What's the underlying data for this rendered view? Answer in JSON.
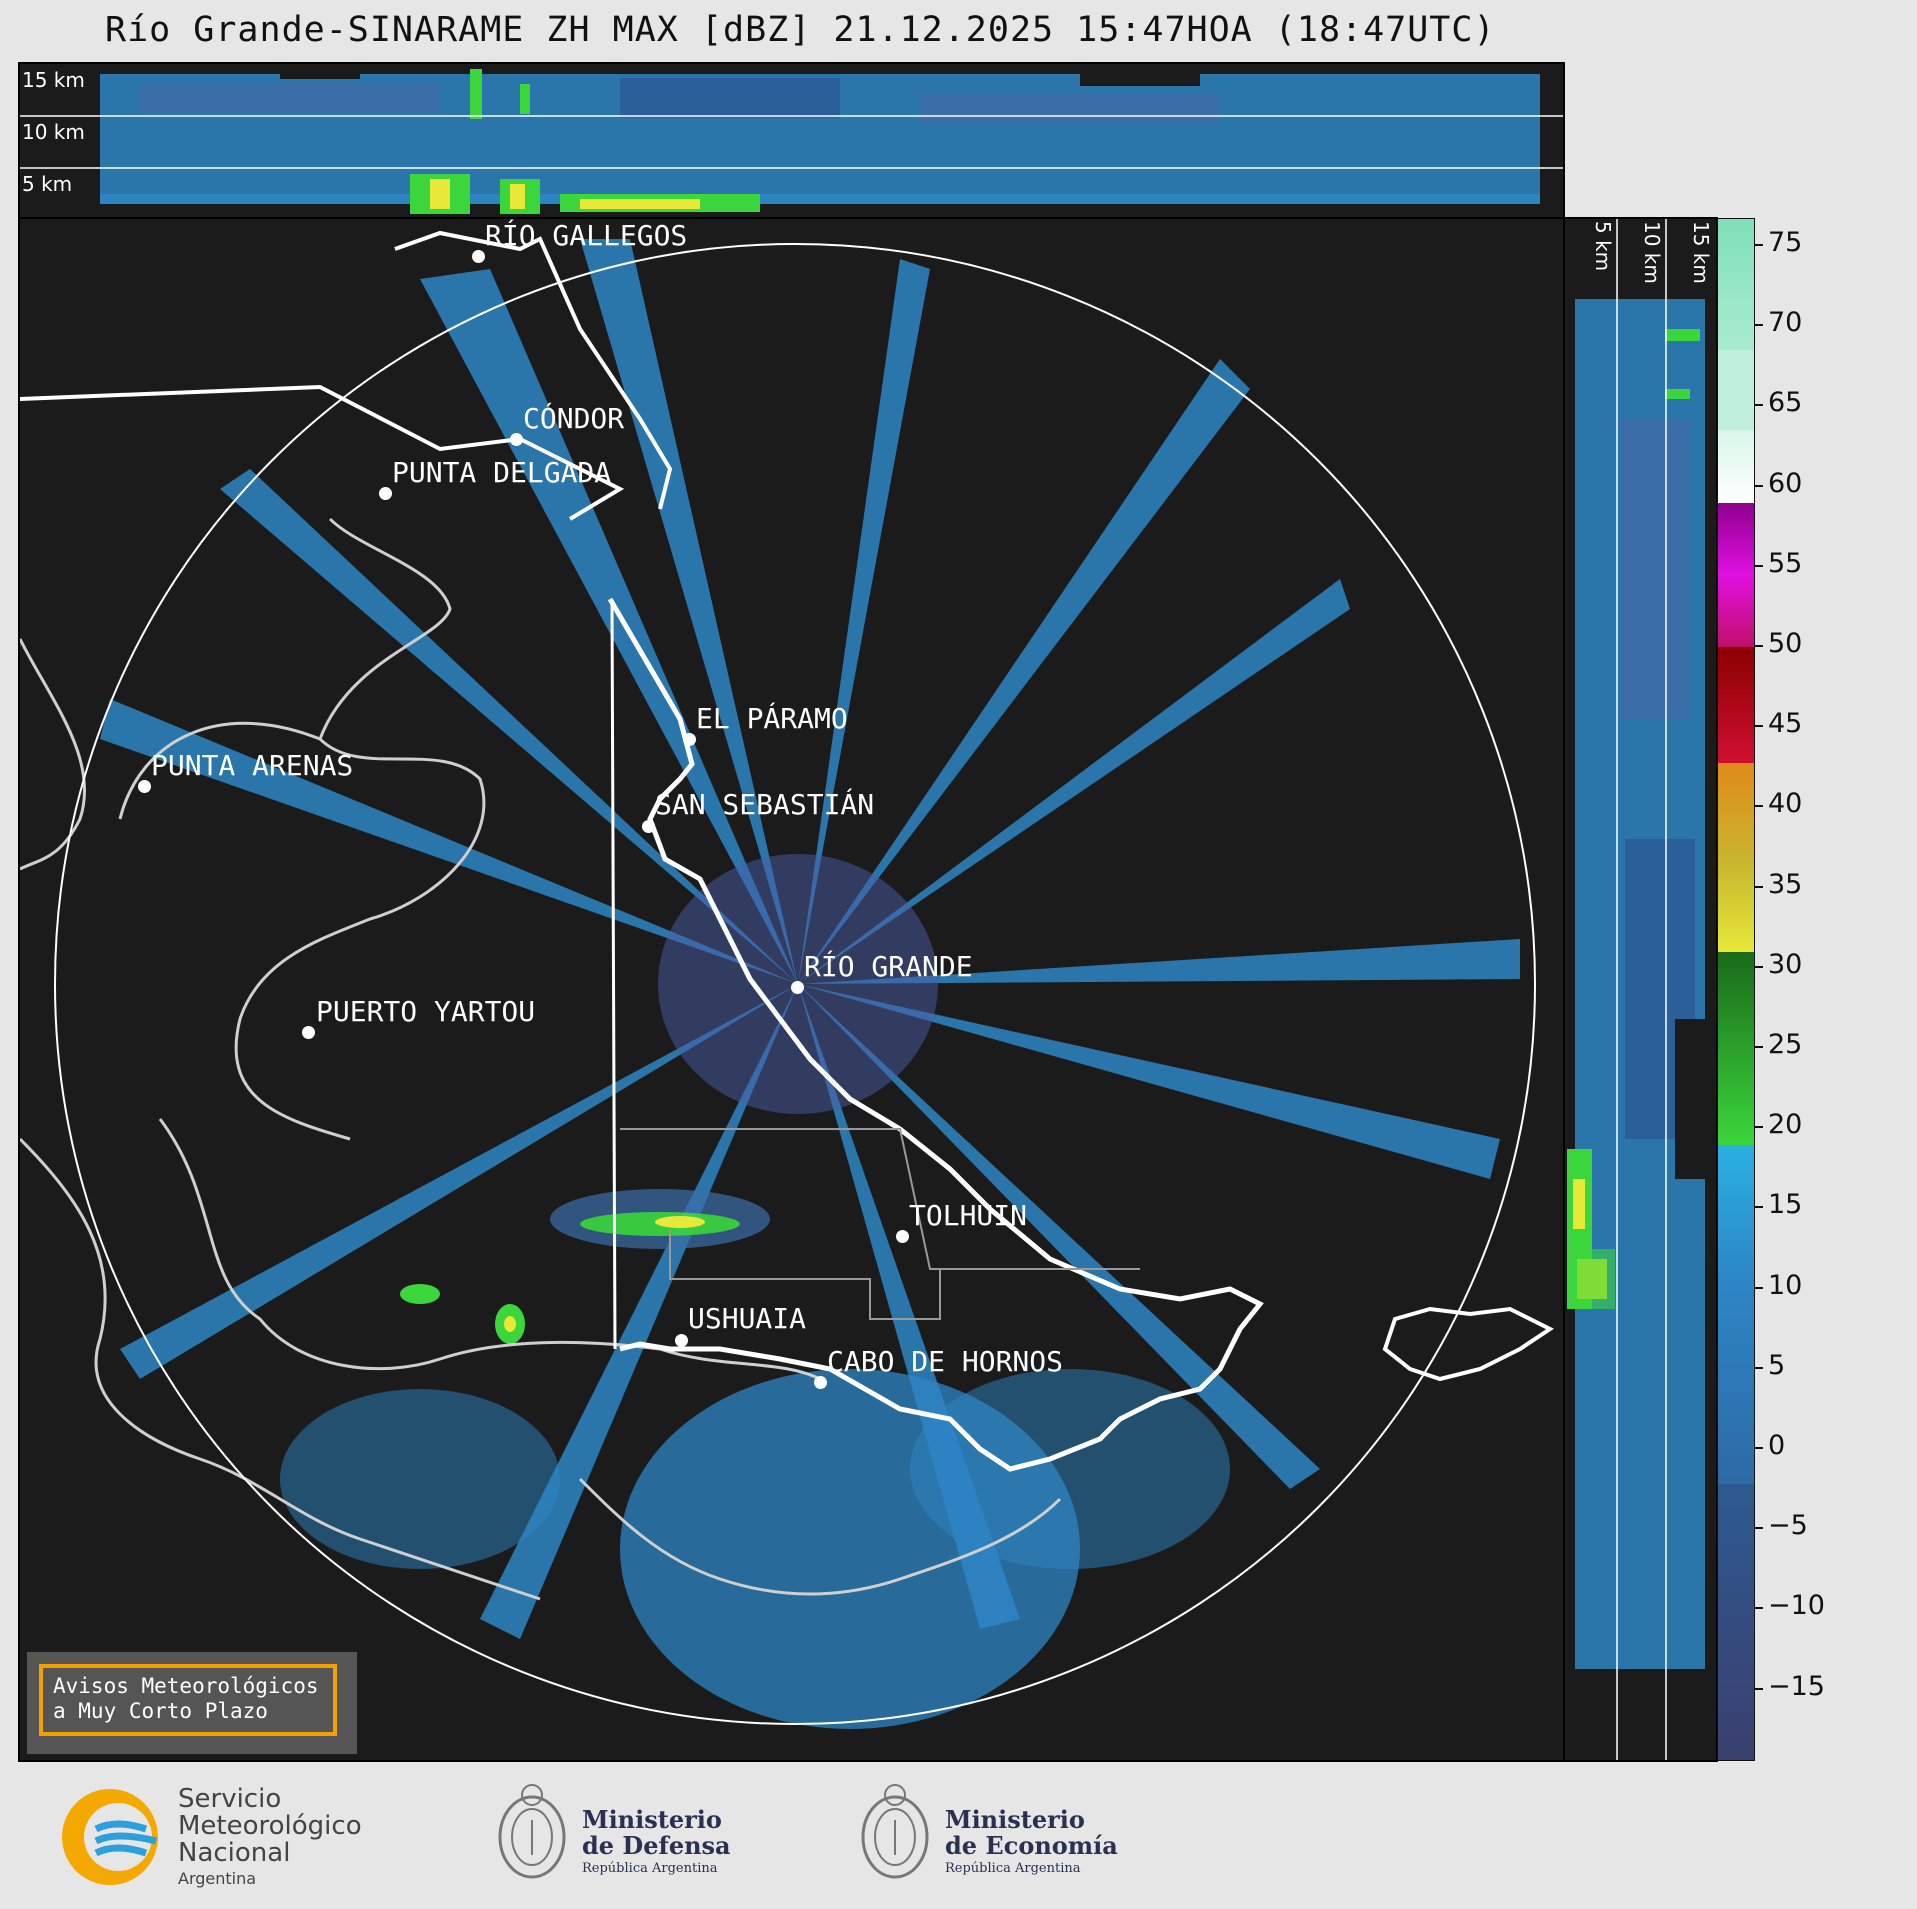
{
  "title": "Río Grande-SINARAME ZH MAX [dBZ] 21.12.2025 15:47HOA (18:47UTC)",
  "top_panel": {
    "km_labels": [
      "15 km",
      "10 km",
      "5 km"
    ]
  },
  "side_panel": {
    "km_labels": [
      "5 km",
      "10 km",
      "15 km"
    ]
  },
  "places": [
    {
      "name": "RÍO GALLEGOS"
    },
    {
      "name": "CÓNDOR"
    },
    {
      "name": "PUNTA DELGADA"
    },
    {
      "name": "EL PÁRAMO"
    },
    {
      "name": "PUNTA ARENAS"
    },
    {
      "name": "SAN SEBASTIÁN"
    },
    {
      "name": "RÍO GRANDE"
    },
    {
      "name": "PUERTO YARTOU"
    },
    {
      "name": "TOLHUIN"
    },
    {
      "name": "USHUAIA"
    },
    {
      "name": "CABO DE HORNOS"
    }
  ],
  "colorbar": {
    "ticks": [
      "75",
      "70",
      "65",
      "60",
      "55",
      "50",
      "45",
      "40",
      "35",
      "30",
      "25",
      "20",
      "15",
      "10",
      "5",
      "0",
      "−5",
      "−10",
      "−15"
    ],
    "colors": {
      "low": "#3b3f6e",
      "blue": "#2d86c4",
      "green": "#3bd63b",
      "yellow": "#e8e838",
      "orange": "#e08a18",
      "red": "#d01030",
      "magenta": "#e010e0",
      "white": "#ffffff",
      "mint": "#7fe0b8"
    }
  },
  "warning_box": {
    "line1": "Avisos Meteorológicos",
    "line2": "a Muy Corto Plazo"
  },
  "logos": {
    "smn": {
      "line1": "Servicio",
      "line2": "Meteorológico",
      "line3": "Nacional",
      "line4": "Argentina"
    },
    "defensa": {
      "line1": "Ministerio",
      "line2": "de Defensa",
      "line3": "República Argentina"
    },
    "economia": {
      "line1": "Ministerio",
      "line2": "de Economía",
      "line3": "República Argentina"
    }
  }
}
